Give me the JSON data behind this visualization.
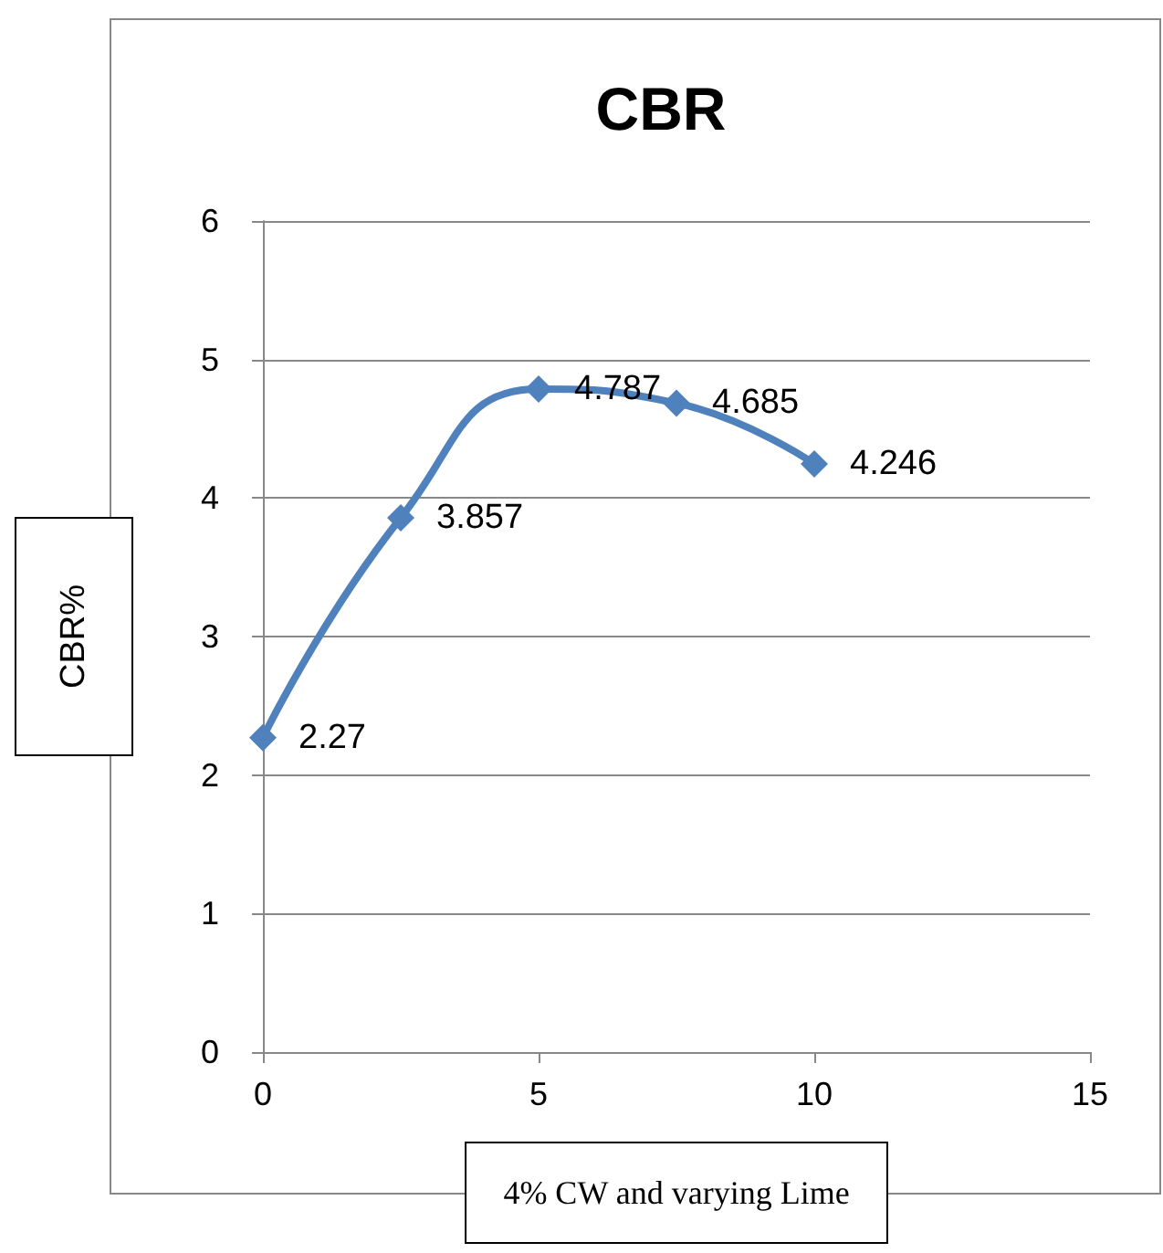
{
  "chart_data": {
    "type": "line",
    "title": "CBR",
    "xlabel": "4% CW and varying Lime",
    "ylabel": "CBR%",
    "x": [
      0,
      2.5,
      5,
      7.5,
      10
    ],
    "series": [
      {
        "color": "#4f81bd",
        "values": [
          2.27,
          3.857,
          4.787,
          4.685,
          4.246
        ]
      }
    ],
    "xlim": [
      0,
      15
    ],
    "xticks": [
      0,
      5,
      10,
      15
    ],
    "ylim": [
      0,
      6
    ],
    "yticks": [
      0,
      1,
      2,
      3,
      4,
      5,
      6
    ],
    "grid": "y",
    "marker": "diamond",
    "line_style": "solid",
    "data_labels": true
  }
}
